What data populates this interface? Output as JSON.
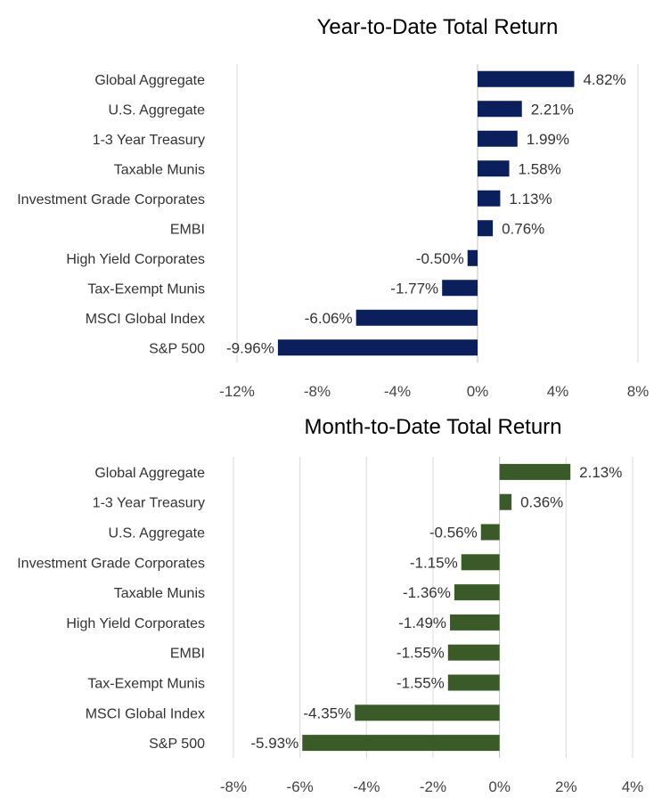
{
  "chart_data": [
    {
      "type": "bar",
      "orientation": "horizontal",
      "title": "Year-to-Date Total Return",
      "categories": [
        "Global Aggregate",
        "U.S. Aggregate",
        "1-3 Year Treasury",
        "Taxable Munis",
        "Investment Grade Corporates",
        "EMBI",
        "High Yield Corporates",
        "Tax-Exempt Munis",
        "MSCI Global Index",
        "S&P 500"
      ],
      "values": [
        4.82,
        2.21,
        1.99,
        1.58,
        1.13,
        0.76,
        -0.5,
        -1.77,
        -6.06,
        -9.96
      ],
      "data_labels": [
        "4.82%",
        "2.21%",
        "1.99%",
        "1.58%",
        "1.13%",
        "0.76%",
        "-0.50%",
        "-1.77%",
        "-6.06%",
        "-9.96%"
      ],
      "xlim": [
        -12,
        8
      ],
      "xticks": [
        -12,
        -8,
        -4,
        0,
        4,
        8
      ],
      "xtick_labels": [
        "-12%",
        "-8%",
        "-4%",
        "0%",
        "4%",
        "8%"
      ],
      "grid": false,
      "color": "#0b1f5c"
    },
    {
      "type": "bar",
      "orientation": "horizontal",
      "title": "Month-to-Date Total Return",
      "categories": [
        "Global Aggregate",
        "1-3 Year Treasury",
        "U.S. Aggregate",
        "Investment Grade Corporates",
        "Taxable Munis",
        "High Yield Corporates",
        "EMBI",
        "Tax-Exempt Munis",
        "MSCI Global Index",
        "S&P 500"
      ],
      "values": [
        2.13,
        0.36,
        -0.56,
        -1.15,
        -1.36,
        -1.49,
        -1.55,
        -1.55,
        -4.35,
        -5.93
      ],
      "data_labels": [
        "2.13%",
        "0.36%",
        "-0.56%",
        "-1.15%",
        "-1.36%",
        "-1.49%",
        "-1.55%",
        "-1.55%",
        "-4.35%",
        "-5.93%"
      ],
      "xlim": [
        -8,
        4
      ],
      "xticks": [
        -8,
        -6,
        -4,
        -2,
        0,
        2,
        4
      ],
      "xtick_labels": [
        "-8%",
        "-6%",
        "-4%",
        "-2%",
        "0%",
        "2%",
        "4%"
      ],
      "grid": true,
      "color": "#3a5a27"
    }
  ]
}
